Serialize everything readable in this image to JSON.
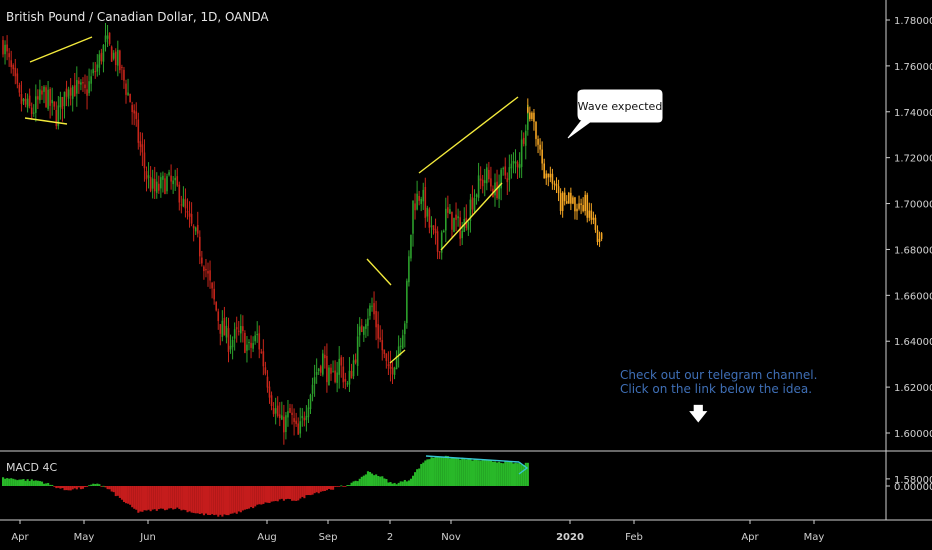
{
  "title": "British Pound / Canadian Dollar, 1D, OANDA",
  "indicator": {
    "label": "MACD 4C"
  },
  "callout": {
    "text": "Wave expected"
  },
  "note": {
    "line1": "Check out our telegram channel.",
    "line2": "Click on the link below the idea."
  },
  "colors": {
    "up": "#2ca02c",
    "down": "#c8261b",
    "projection": "#f5a623",
    "pattern": "#f3ea3c",
    "divergence": "#38c5d3",
    "axis_text": "#d0d0d0",
    "macd_pos": "#29b829",
    "macd_neg": "#c51c1c",
    "background": "#000000"
  },
  "chart_data": [
    {
      "type": "candlestick",
      "title": "British Pound / Canadian Dollar, 1D, OANDA",
      "y_axis_side": "right",
      "ylim": [
        1.576,
        1.792
      ],
      "y_ticks": [
        "1.78000",
        "1.76000",
        "1.74000",
        "1.72000",
        "1.70000",
        "1.68000",
        "1.66000",
        "1.64000",
        "1.62000",
        "1.60000",
        "1.58000"
      ],
      "x_ticks": [
        "Apr",
        "May",
        "Jun",
        "Aug",
        "Sep",
        "2",
        "Nov",
        "2020",
        "Feb",
        "Apr",
        "May"
      ],
      "series": [
        {
          "name": "price",
          "color_up": "#2ca02c",
          "color_down": "#c8261b",
          "path": [
            [
              0,
              1.77
            ],
            [
              8,
              1.745
            ],
            [
              14,
              1.74
            ],
            [
              20,
              1.748
            ],
            [
              26,
              1.738
            ],
            [
              32,
              1.752
            ],
            [
              40,
              1.748
            ],
            [
              46,
              1.76
            ],
            [
              50,
              1.77
            ],
            [
              56,
              1.762
            ],
            [
              62,
              1.745
            ],
            [
              66,
              1.728
            ],
            [
              70,
              1.712
            ],
            [
              74,
              1.705
            ],
            [
              80,
              1.71
            ],
            [
              86,
              1.705
            ],
            [
              90,
              1.693
            ],
            [
              94,
              1.685
            ],
            [
              98,
              1.675
            ],
            [
              102,
              1.66
            ],
            [
              106,
              1.647
            ],
            [
              110,
              1.64
            ],
            [
              116,
              1.643
            ],
            [
              120,
              1.636
            ],
            [
              124,
              1.642
            ],
            [
              128,
              1.627
            ],
            [
              132,
              1.612
            ],
            [
              136,
              1.603
            ],
            [
              140,
              1.608
            ],
            [
              144,
              1.598
            ],
            [
              148,
              1.612
            ],
            [
              152,
              1.625
            ],
            [
              156,
              1.633
            ],
            [
              160,
              1.621
            ],
            [
              164,
              1.631
            ],
            [
              168,
              1.62
            ],
            [
              172,
              1.635
            ],
            [
              176,
              1.65
            ],
            [
              180,
              1.655
            ],
            [
              184,
              1.64
            ],
            [
              188,
              1.625
            ],
            [
              192,
              1.635
            ],
            [
              196,
              1.65
            ],
            [
              200,
              1.7
            ],
            [
              204,
              1.705
            ],
            [
              208,
              1.69
            ],
            [
              212,
              1.68
            ],
            [
              216,
              1.695
            ],
            [
              220,
              1.692
            ],
            [
              224,
              1.688
            ],
            [
              228,
              1.7
            ],
            [
              232,
              1.708
            ],
            [
              236,
              1.712
            ],
            [
              240,
              1.705
            ],
            [
              244,
              1.712
            ],
            [
              248,
              1.715
            ],
            [
              252,
              1.72
            ],
            [
              256,
              1.742
            ]
          ]
        },
        {
          "name": "projection",
          "color": "#f5a623",
          "path": [
            [
              256,
              1.742
            ],
            [
              260,
              1.73
            ],
            [
              264,
              1.715
            ],
            [
              268,
              1.708
            ],
            [
              272,
              1.7
            ],
            [
              276,
              1.705
            ],
            [
              280,
              1.695
            ],
            [
              284,
              1.7
            ],
            [
              288,
              1.69
            ],
            [
              292,
              1.684
            ]
          ]
        }
      ],
      "annotations": [
        "Wave expected"
      ]
    },
    {
      "type": "bar",
      "name": "MACD 4C",
      "y_ticks": [
        "0.00000"
      ],
      "values_description": "histogram positive Apr-May, negative May-Aug, positive Sep-Dec"
    }
  ]
}
